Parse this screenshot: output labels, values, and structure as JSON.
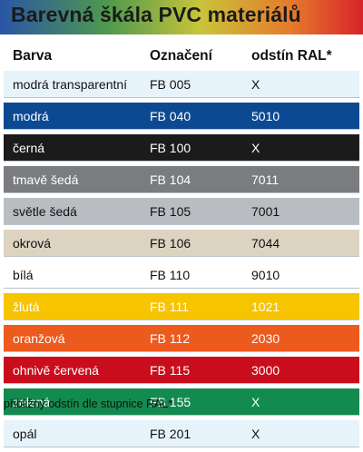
{
  "title": "Barevná škála PVC materiálů",
  "header": {
    "col1": "Barva",
    "col2": "Označení",
    "col3": "odstín RAL*"
  },
  "rows": [
    {
      "barva": "modrá transparentní",
      "oznaceni": "FB 005",
      "ral": "X",
      "bg": "#e7f3fa",
      "fg": "#111111"
    },
    {
      "barva": "modrá",
      "oznaceni": "FB 040",
      "ral": "5010",
      "bg": "#0b4a93",
      "fg": "#ffffff"
    },
    {
      "barva": "černá",
      "oznaceni": "FB 100",
      "ral": "X",
      "bg": "#1b1b1b",
      "fg": "#ffffff"
    },
    {
      "barva": "tmavě šedá",
      "oznaceni": "FB 104",
      "ral": "7011",
      "bg": "#7a7c7f",
      "fg": "#ffffff"
    },
    {
      "barva": "světle šedá",
      "oznaceni": "FB 105",
      "ral": "7001",
      "bg": "#b9bdc2",
      "fg": "#111111"
    },
    {
      "barva": "okrová",
      "oznaceni": "FB 106",
      "ral": "7044",
      "bg": "#ddd3c1",
      "fg": "#111111"
    },
    {
      "barva": "bílá",
      "oznaceni": "FB 110",
      "ral": "9010",
      "bg": "#ffffff",
      "fg": "#111111"
    },
    {
      "barva": "žlutá",
      "oznaceni": "FB 111",
      "ral": "1021",
      "bg": "#f7c400",
      "fg": "#ffffff"
    },
    {
      "barva": "oranžová",
      "oznaceni": "FB 112",
      "ral": "2030",
      "bg": "#ec5a1e",
      "fg": "#ffffff"
    },
    {
      "barva": "ohnivě červená",
      "oznaceni": "FB 115",
      "ral": "3000",
      "bg": "#c90d1c",
      "fg": "#ffffff"
    },
    {
      "barva": "zelená",
      "oznaceni": "FB 155",
      "ral": "X",
      "bg": "#138a4f",
      "fg": "#ffffff"
    },
    {
      "barva": "opál",
      "oznaceni": "FB 201",
      "ral": "X",
      "bg": "#e7f3fa",
      "fg": "#111111"
    }
  ],
  "footnote": "přibližný odstín dle stupnice RAL*"
}
